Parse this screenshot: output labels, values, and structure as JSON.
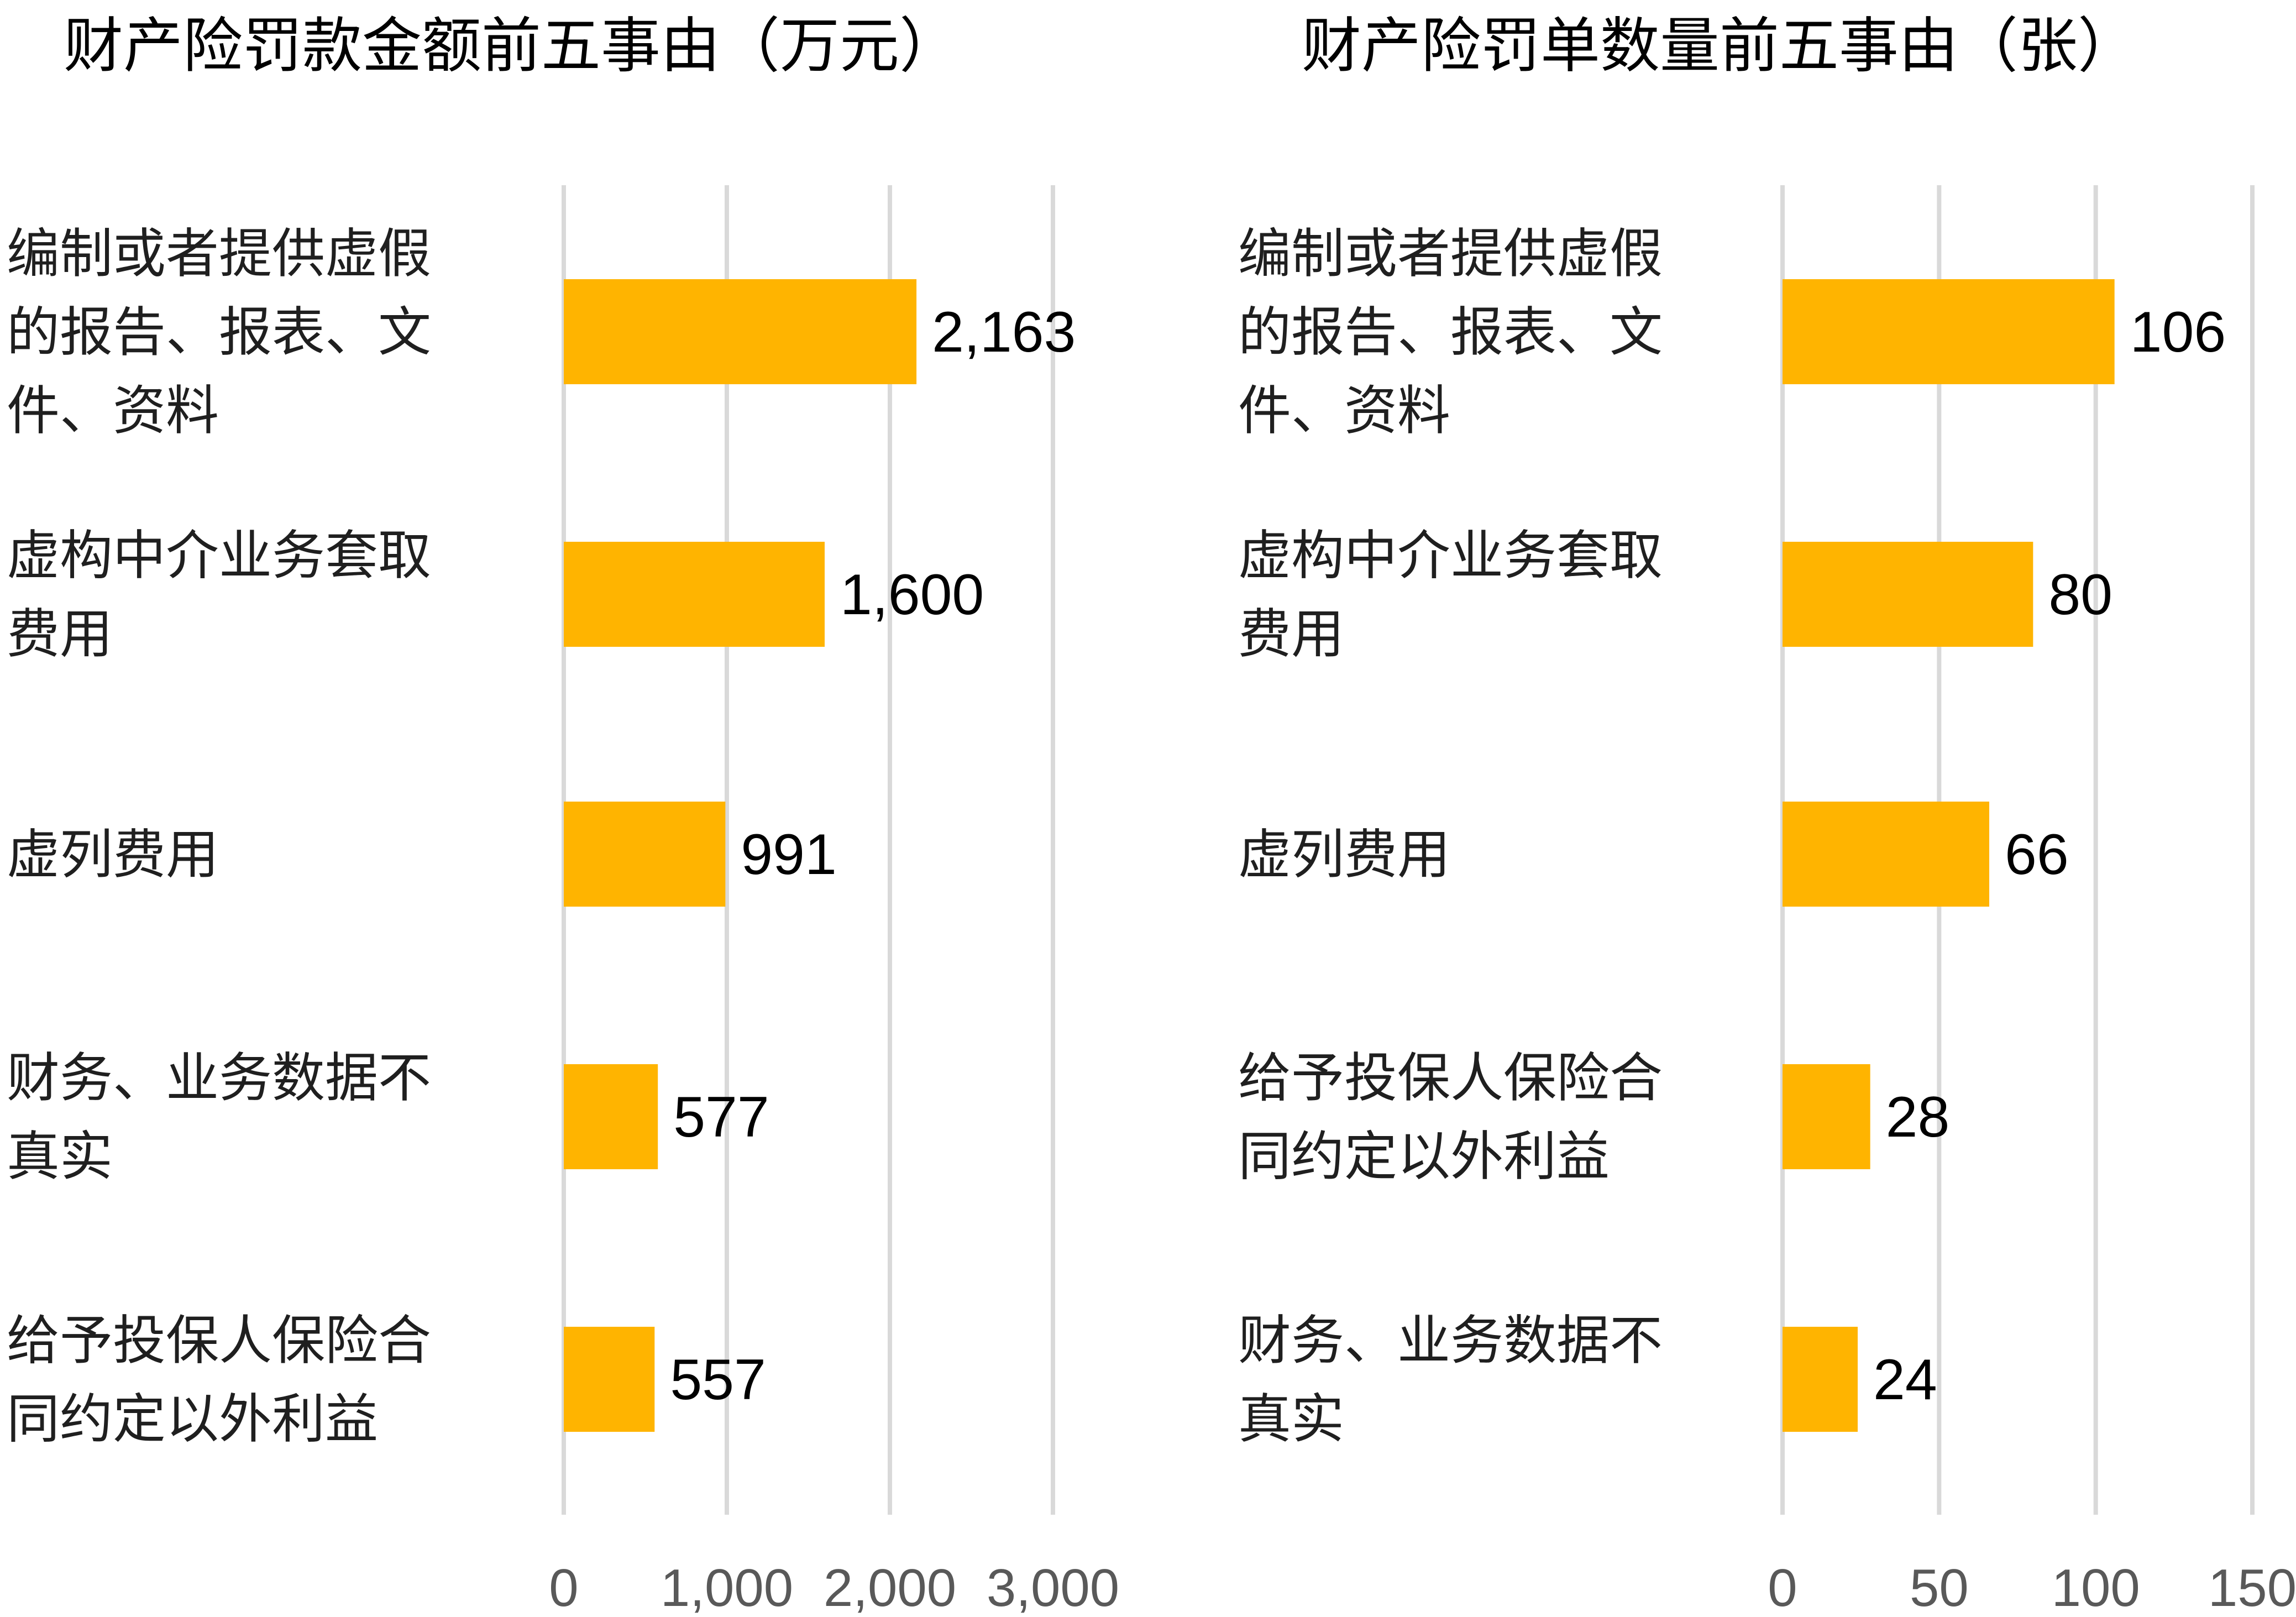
{
  "chart_data": [
    {
      "type": "bar",
      "orientation": "horizontal",
      "title": "财产险罚款金额前五事由（万元）",
      "categories": [
        "编制或者提供虚假的报告、报表、文件、资料",
        "虚构中介业务套取费用",
        "虚列费用",
        "财务、业务数据不真实",
        "给予投保人保险合同约定以外利益"
      ],
      "category_lines": [
        [
          "编制或者提供虚假",
          "的报告、报表、文",
          "件、资料"
        ],
        [
          "虚构中介业务套取",
          "费用"
        ],
        [
          "虚列费用"
        ],
        [
          "财务、业务数据不",
          "真实"
        ],
        [
          "给予投保人保险合",
          "同约定以外利益"
        ]
      ],
      "values": [
        2163,
        1600,
        991,
        577,
        557
      ],
      "value_labels": [
        "2,163",
        "1,600",
        "991",
        "577",
        "557"
      ],
      "xlim": [
        0,
        3000
      ],
      "ticks": [
        0,
        1000,
        2000,
        3000
      ],
      "tick_labels": [
        "0",
        "1,000",
        "2,000",
        "3,000"
      ],
      "grid": true,
      "bar_color": "#FFB400"
    },
    {
      "type": "bar",
      "orientation": "horizontal",
      "title": "财产险罚单数量前五事由（张）",
      "categories": [
        "编制或者提供虚假的报告、报表、文件、资料",
        "虚构中介业务套取费用",
        "虚列费用",
        "给予投保人保险合同约定以外利益",
        "财务、业务数据不真实"
      ],
      "category_lines": [
        [
          "编制或者提供虚假",
          "的报告、报表、文",
          "件、资料"
        ],
        [
          "虚构中介业务套取",
          "费用"
        ],
        [
          "虚列费用"
        ],
        [
          "给予投保人保险合",
          "同约定以外利益"
        ],
        [
          "财务、业务数据不",
          "真实"
        ]
      ],
      "values": [
        106,
        80,
        66,
        28,
        24
      ],
      "value_labels": [
        "106",
        "80",
        "66",
        "28",
        "24"
      ],
      "xlim": [
        0,
        150
      ],
      "ticks": [
        0,
        50,
        100,
        150
      ],
      "tick_labels": [
        "0",
        "50",
        "100",
        "150"
      ],
      "grid": true,
      "bar_color": "#FFB400"
    }
  ]
}
